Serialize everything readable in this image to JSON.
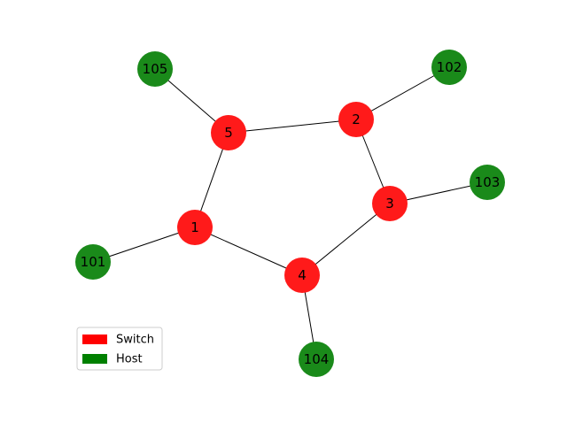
{
  "diagram": {
    "colors": {
      "switch": "#ff1a1a",
      "host": "#1a8a1a",
      "legend_switch": "#ff0000",
      "legend_host": "#008000"
    },
    "nodes": [
      {
        "id": "1",
        "label": "1",
        "kind": "switch"
      },
      {
        "id": "2",
        "label": "2",
        "kind": "switch"
      },
      {
        "id": "3",
        "label": "3",
        "kind": "switch"
      },
      {
        "id": "4",
        "label": "4",
        "kind": "switch"
      },
      {
        "id": "5",
        "label": "5",
        "kind": "switch"
      },
      {
        "id": "101",
        "label": "101",
        "kind": "host"
      },
      {
        "id": "102",
        "label": "102",
        "kind": "host"
      },
      {
        "id": "103",
        "label": "103",
        "kind": "host"
      },
      {
        "id": "104",
        "label": "104",
        "kind": "host"
      },
      {
        "id": "105",
        "label": "105",
        "kind": "host"
      }
    ],
    "edges": [
      {
        "from": "5",
        "to": "2"
      },
      {
        "from": "5",
        "to": "1"
      },
      {
        "from": "5",
        "to": "105"
      },
      {
        "from": "2",
        "to": "102"
      },
      {
        "from": "2",
        "to": "3"
      },
      {
        "from": "3",
        "to": "103"
      },
      {
        "from": "3",
        "to": "4"
      },
      {
        "from": "4",
        "to": "1"
      },
      {
        "from": "4",
        "to": "104"
      },
      {
        "from": "1",
        "to": "101"
      }
    ],
    "legend": [
      {
        "label": "Switch",
        "kind": "switch"
      },
      {
        "label": "Host",
        "kind": "host"
      }
    ]
  }
}
